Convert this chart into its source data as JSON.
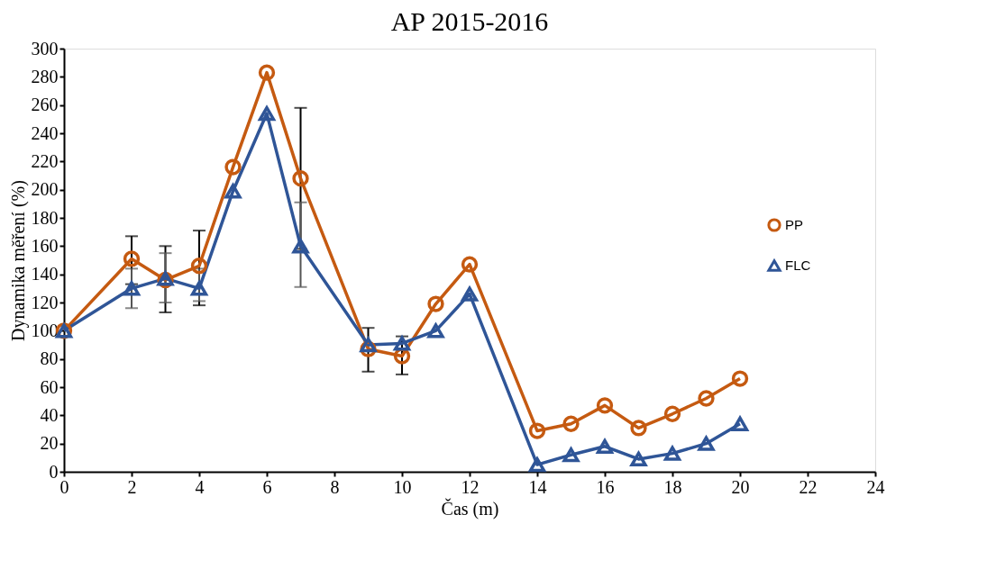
{
  "chart_data": {
    "type": "line",
    "title": "AP 2015-2016",
    "xlabel": "Čas (m)",
    "ylabel": "Dynamika měření (%)",
    "x": [
      0,
      2,
      3,
      4,
      5,
      6,
      7,
      9,
      10,
      11,
      12,
      14,
      15,
      16,
      17,
      18,
      19,
      20
    ],
    "series": [
      {
        "name": "PP",
        "color": "#c55a11",
        "marker": "circle",
        "values": [
          100,
          151,
          136,
          146,
          216,
          283,
          208,
          87,
          82,
          119,
          147,
          29,
          34,
          47,
          31,
          41,
          52,
          66
        ],
        "errors": [
          null,
          [
            133,
            167
          ],
          [
            113,
            160
          ],
          [
            118,
            171
          ],
          null,
          null,
          [
            158,
            258
          ],
          [
            71,
            102
          ],
          [
            69,
            96
          ],
          null,
          null,
          null,
          null,
          null,
          null,
          null,
          null,
          null
        ]
      },
      {
        "name": "FLC",
        "color": "#2f5597",
        "marker": "triangle",
        "values": [
          100,
          130,
          137,
          130,
          199,
          254,
          160,
          90,
          91,
          100,
          126,
          5,
          12,
          18,
          9,
          13,
          20,
          34
        ],
        "errors": [
          null,
          [
            116,
            144
          ],
          [
            120,
            155
          ],
          [
            121,
            144
          ],
          null,
          null,
          [
            131,
            191
          ],
          null,
          null,
          null,
          null,
          null,
          null,
          null,
          null,
          null,
          null,
          null
        ]
      }
    ],
    "xlim": [
      0,
      24
    ],
    "xticks": [
      0,
      2,
      4,
      6,
      8,
      10,
      12,
      14,
      16,
      18,
      20,
      22,
      24
    ],
    "ylim": [
      0,
      300
    ],
    "yticks": [
      0,
      20,
      40,
      60,
      80,
      100,
      120,
      140,
      160,
      180,
      200,
      220,
      240,
      260,
      280,
      300
    ],
    "grid": false,
    "legend": "right",
    "line_style": "solid"
  }
}
